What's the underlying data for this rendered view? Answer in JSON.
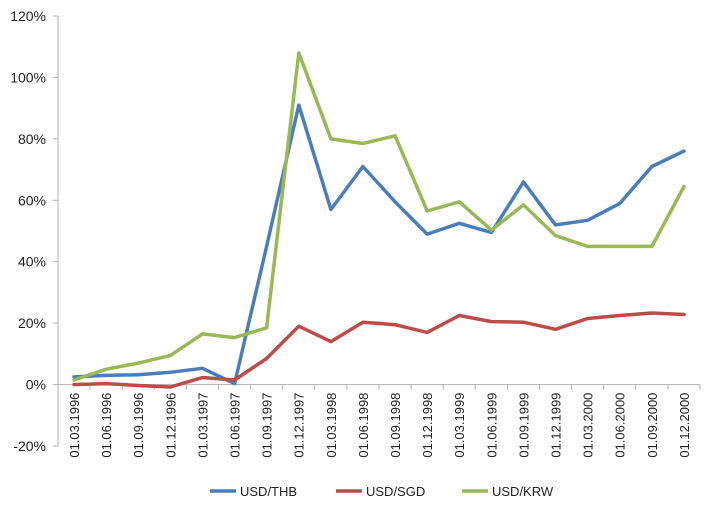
{
  "chart_data": {
    "type": "line",
    "title": "",
    "xlabel": "",
    "ylabel": "",
    "ylim": [
      -20,
      120
    ],
    "yticks": [
      -20,
      0,
      20,
      40,
      60,
      80,
      100,
      120
    ],
    "ytick_labels": [
      "-20%",
      "0%",
      "20%",
      "40%",
      "60%",
      "80%",
      "100%",
      "120%"
    ],
    "grid": false,
    "legend_position": "bottom",
    "categories": [
      "01.03.1996",
      "01.06.1996",
      "01.09.1996",
      "01.12.1996",
      "01.03.1997",
      "01.06.1997",
      "01.09.1997",
      "01.12.1997",
      "01.03.1998",
      "01.06.1998",
      "01.09.1998",
      "01.12.1998",
      "01.03.1999",
      "01.06.1999",
      "01.09.1999",
      "01.12.1999",
      "01.03.2000",
      "01.06.2000",
      "01.09.2000",
      "01.12.2000"
    ],
    "series": [
      {
        "name": "USD/THB",
        "color": "#4a7ebb",
        "values": [
          2.5,
          3,
          3.2,
          4,
          5.3,
          0.3,
          45,
          91,
          57,
          71,
          59.5,
          49,
          52.5,
          49.5,
          66,
          52,
          53.5,
          59,
          71,
          76
        ]
      },
      {
        "name": "USD/SGD",
        "color": "#be4b48",
        "values": [
          0,
          0.3,
          -0.3,
          -0.8,
          2.3,
          1.5,
          8.5,
          19,
          14,
          20.3,
          19.5,
          17,
          22.5,
          20.5,
          20.3,
          18,
          21.5,
          22.5,
          23.3,
          22.8
        ]
      },
      {
        "name": "USD/KRW",
        "color": "#98b954",
        "values": [
          1.5,
          5,
          7,
          9.5,
          16.5,
          15.3,
          18.5,
          108,
          80,
          78.5,
          81,
          56.5,
          59.5,
          50.3,
          58.5,
          48.5,
          45,
          45,
          45,
          64.5
        ]
      }
    ]
  }
}
